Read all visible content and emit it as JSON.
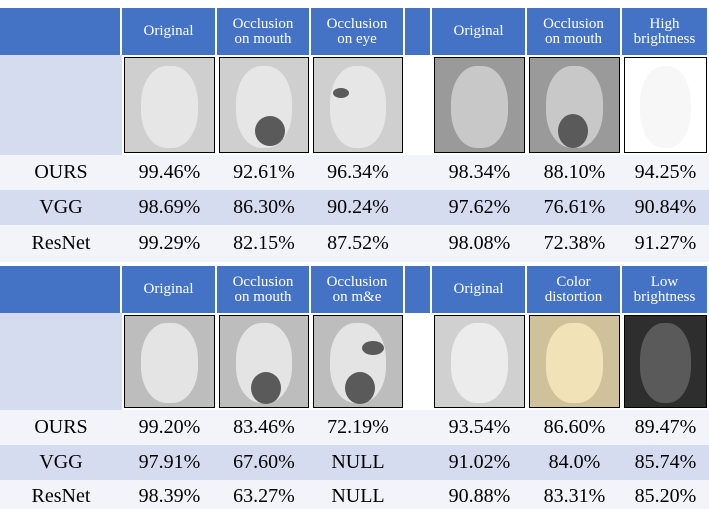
{
  "blocks": [
    {
      "headers": [
        "Original",
        "Occlusion\non mouth",
        "Occlusion\non eye",
        "Original",
        "Occlusion\non mouth",
        "High\nbrightness"
      ],
      "rows": [
        {
          "label": "OURS",
          "values": [
            "99.46%",
            "92.61%",
            "96.34%",
            "98.34%",
            "88.10%",
            "94.25%"
          ]
        },
        {
          "label": "VGG",
          "values": [
            "98.69%",
            "86.30%",
            "90.24%",
            "97.62%",
            "76.61%",
            "90.84%"
          ]
        },
        {
          "label": "ResNet",
          "values": [
            "99.29%",
            "82.15%",
            "87.52%",
            "98.08%",
            "72.38%",
            "91.27%"
          ]
        }
      ]
    },
    {
      "headers": [
        "Original",
        "Occlusion\non mouth",
        "Occlusion\non m&e",
        "Original",
        "Color\ndistortion",
        "Low\nbrightness"
      ],
      "rows": [
        {
          "label": "OURS",
          "values": [
            "99.20%",
            "83.46%",
            "72.19%",
            "93.54%",
            "86.60%",
            "89.47%"
          ]
        },
        {
          "label": "VGG",
          "values": [
            "97.91%",
            "67.60%",
            "NULL",
            "91.02%",
            "84.0%",
            "85.74%"
          ]
        },
        {
          "label": "ResNet",
          "values": [
            "98.39%",
            "63.27%",
            "NULL",
            "90.88%",
            "83.31%",
            "85.20%"
          ]
        }
      ]
    }
  ]
}
